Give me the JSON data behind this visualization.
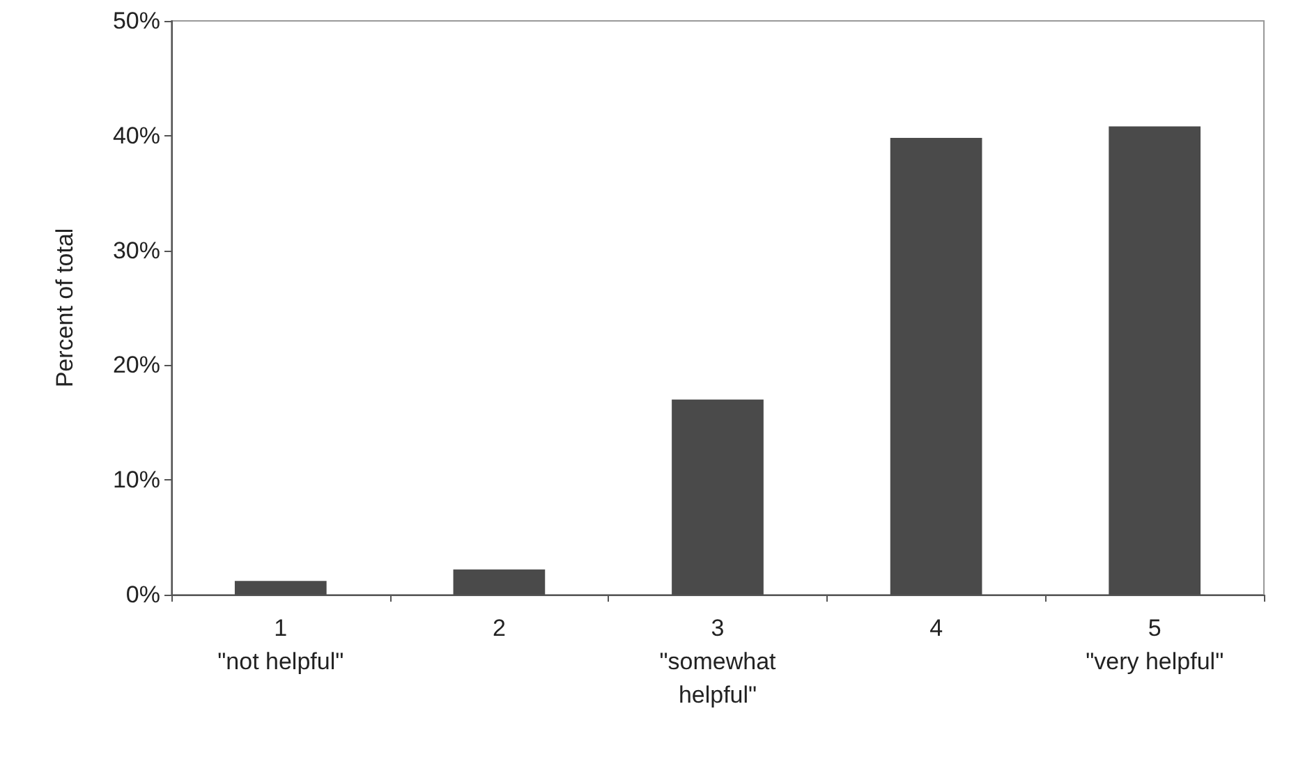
{
  "chart_data": {
    "type": "bar",
    "ylabel": "Percent of total",
    "categories": [
      "1\n\"not helpful\"",
      "2",
      "3\n\"somewhat\nhelpful\"",
      "4",
      "5\n\"very helpful\""
    ],
    "values": [
      1.2,
      2.2,
      17,
      39.8,
      40.8
    ],
    "color": "#4a4a4a",
    "ylim": [
      0,
      50
    ],
    "yticks": [
      {
        "value": 0,
        "label": "0%"
      },
      {
        "value": 10,
        "label": "10%"
      },
      {
        "value": 20,
        "label": "20%"
      },
      {
        "value": 30,
        "label": "30%"
      },
      {
        "value": 40,
        "label": "40%"
      },
      {
        "value": 50,
        "label": "50%"
      }
    ],
    "grid": false
  }
}
